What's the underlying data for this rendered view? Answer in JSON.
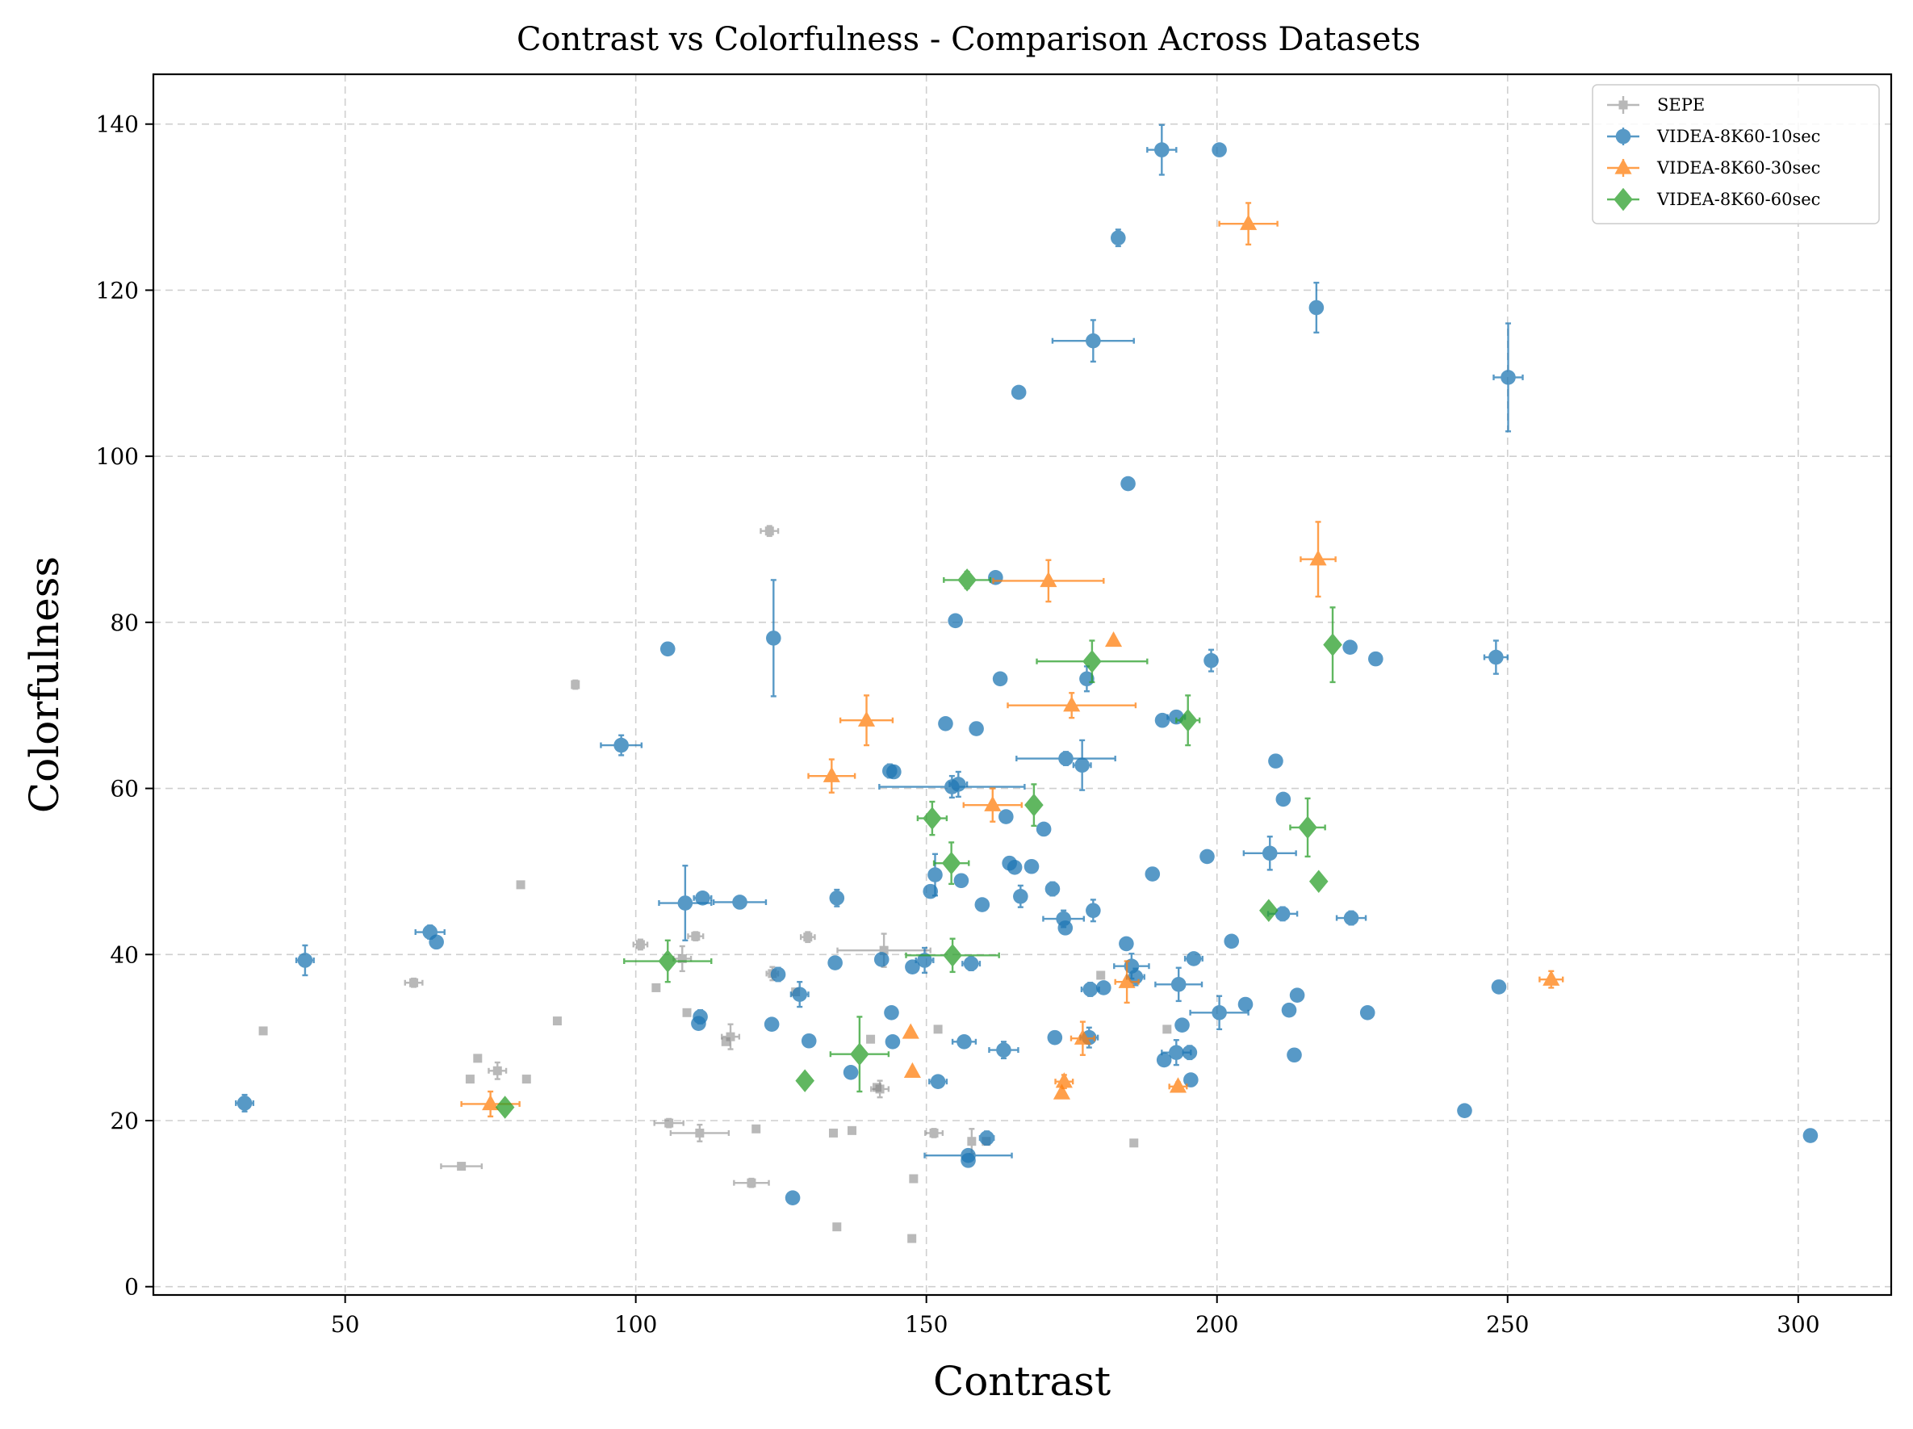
{
  "chart_data": {
    "type": "scatter",
    "title": "Contrast vs Colorfulness - Comparison Across Datasets",
    "xlabel": "Contrast",
    "ylabel": "Colorfulness",
    "xlim": [
      17,
      316
    ],
    "ylim": [
      -1,
      146
    ],
    "xticks": [
      50,
      100,
      150,
      200,
      250,
      300
    ],
    "yticks": [
      0,
      20,
      40,
      60,
      80,
      100,
      120,
      140
    ],
    "grid": true,
    "legend_position": "top-right",
    "series": [
      {
        "name": "SEPE",
        "color": "#7f7f7f",
        "marker": "square",
        "points": [
          [
            35.9,
            30.8,
            0,
            0
          ],
          [
            61.8,
            36.6,
            1.5,
            0.5
          ],
          [
            71.5,
            25.0,
            0,
            0
          ],
          [
            72.8,
            27.5,
            0,
            0
          ],
          [
            76.2,
            26.0,
            1.5,
            1.0
          ],
          [
            70.0,
            14.5,
            3.5,
            0
          ],
          [
            80.2,
            48.4,
            0,
            0
          ],
          [
            81.2,
            25.0,
            0,
            0
          ],
          [
            86.5,
            32.0,
            0,
            0
          ],
          [
            89.6,
            72.5,
            0,
            0.5
          ],
          [
            100.8,
            41.2,
            1.2,
            0.6
          ],
          [
            103.5,
            36.0,
            0,
            0
          ],
          [
            105.7,
            19.7,
            2.5,
            0.5
          ],
          [
            108.0,
            39.5,
            1.5,
            1.5
          ],
          [
            108.8,
            33.0,
            0,
            0
          ],
          [
            110.3,
            42.2,
            1.3,
            0.5
          ],
          [
            111.0,
            18.5,
            5.0,
            1.0
          ],
          [
            115.5,
            29.5,
            0,
            0
          ],
          [
            116.3,
            30.1,
            1.5,
            1.5
          ],
          [
            119.9,
            12.5,
            3.0,
            0.5
          ],
          [
            120.7,
            19.0,
            0,
            0
          ],
          [
            123.0,
            91.0,
            1.5,
            0.6
          ],
          [
            123.5,
            37.7,
            1.0,
            0.8
          ],
          [
            127.5,
            35.5,
            0,
            0
          ],
          [
            129.6,
            42.1,
            1.2,
            0.6
          ],
          [
            134.0,
            18.5,
            0,
            0
          ],
          [
            134.6,
            7.2,
            0,
            0
          ],
          [
            137.2,
            18.8,
            0,
            0
          ],
          [
            140.4,
            29.8,
            0,
            0
          ],
          [
            141.5,
            24.0,
            0,
            0
          ],
          [
            142.0,
            23.8,
            1.5,
            1.0
          ],
          [
            142.7,
            40.5,
            8.0,
            2.0
          ],
          [
            147.8,
            13.0,
            0,
            0
          ],
          [
            147.5,
            5.8,
            0,
            0
          ],
          [
            151.3,
            18.5,
            1.5,
            0.5
          ],
          [
            152.0,
            31.0,
            0,
            0
          ],
          [
            157.8,
            17.5,
            0,
            1.5
          ],
          [
            160.3,
            17.5,
            0,
            0
          ],
          [
            180.0,
            37.5,
            0,
            0
          ],
          [
            185.7,
            17.3,
            0,
            0
          ],
          [
            191.4,
            31.0,
            0,
            0
          ]
        ]
      },
      {
        "name": "VIDEA-8K60-10sec",
        "color": "#1f77b4",
        "marker": "circle",
        "points": [
          [
            32.7,
            22.1,
            1.5,
            1.0
          ],
          [
            43.1,
            39.3,
            1.5,
            1.8
          ],
          [
            64.6,
            42.7,
            2.5,
            0.8
          ],
          [
            65.7,
            41.5,
            0,
            0
          ],
          [
            97.5,
            65.2,
            3.5,
            1.2
          ],
          [
            105.5,
            76.8,
            0,
            0
          ],
          [
            108.5,
            46.2,
            4.5,
            4.5
          ],
          [
            111.5,
            46.8,
            1.5,
            0.5
          ],
          [
            111.1,
            32.5,
            1.0,
            0.8
          ],
          [
            110.8,
            31.7,
            0,
            0
          ],
          [
            117.9,
            46.3,
            4.5,
            0.5
          ],
          [
            123.7,
            78.1,
            1.0,
            7.0
          ],
          [
            123.4,
            31.6,
            0,
            0
          ],
          [
            124.5,
            37.6,
            1.0,
            0.8
          ],
          [
            127.0,
            10.7,
            0,
            0
          ],
          [
            128.2,
            35.2,
            1.5,
            1.5
          ],
          [
            129.8,
            29.6,
            0,
            0
          ],
          [
            134.3,
            39.0,
            1.0,
            0.7
          ],
          [
            134.6,
            46.8,
            1.0,
            1.0
          ],
          [
            137.0,
            25.8,
            0,
            0
          ],
          [
            142.3,
            39.4,
            0,
            0
          ],
          [
            143.7,
            62.1,
            1.0,
            0.8
          ],
          [
            144.4,
            62.0,
            1.0,
            0
          ],
          [
            144.0,
            33.0,
            0,
            0
          ],
          [
            144.2,
            29.5,
            0,
            0
          ],
          [
            147.6,
            38.5,
            0,
            0
          ],
          [
            149.7,
            39.3,
            1.5,
            1.5
          ],
          [
            150.7,
            47.6,
            0,
            0
          ],
          [
            151.5,
            49.6,
            1.0,
            2.5
          ],
          [
            152.0,
            24.7,
            1.5,
            0.5
          ],
          [
            153.3,
            67.8,
            0,
            0
          ],
          [
            154.4,
            60.2,
            12.5,
            1.3
          ],
          [
            155.0,
            80.2,
            0,
            0
          ],
          [
            155.5,
            60.5,
            1.5,
            1.5
          ],
          [
            156.0,
            48.9,
            0,
            0
          ],
          [
            156.5,
            29.5,
            2.0,
            0
          ],
          [
            157.2,
            15.8,
            7.5,
            0.5
          ],
          [
            157.2,
            15.2,
            0,
            0
          ],
          [
            157.7,
            38.9,
            1.5,
            0.8
          ],
          [
            158.6,
            67.2,
            0,
            0
          ],
          [
            159.6,
            46.0,
            0,
            0
          ],
          [
            160.4,
            17.9,
            1.2,
            0.8
          ],
          [
            161.9,
            85.4,
            1.0,
            0.5
          ],
          [
            162.7,
            73.2,
            1.0,
            0.5
          ],
          [
            163.3,
            28.5,
            2.5,
            1.0
          ],
          [
            163.7,
            56.6,
            0,
            0
          ],
          [
            164.3,
            51.0,
            0,
            0
          ],
          [
            165.2,
            50.5,
            0,
            0
          ],
          [
            165.9,
            107.7,
            0,
            0
          ],
          [
            166.2,
            47.0,
            0,
            1.3
          ],
          [
            168.1,
            50.6,
            0,
            0
          ],
          [
            170.2,
            55.1,
            0,
            0
          ],
          [
            171.7,
            47.9,
            1.0,
            0.8
          ],
          [
            172.1,
            30.0,
            0,
            0
          ],
          [
            173.6,
            44.3,
            3.5,
            1.0
          ],
          [
            173.9,
            43.2,
            0,
            0
          ],
          [
            174.0,
            63.6,
            8.5,
            0.8
          ],
          [
            176.8,
            62.8,
            1.5,
            3.0
          ],
          [
            177.6,
            73.2,
            0,
            1.5
          ],
          [
            178.0,
            30.0,
            1.5,
            1.2
          ],
          [
            178.2,
            35.8,
            1.5,
            0.8
          ],
          [
            178.7,
            45.3,
            0,
            1.3
          ],
          [
            178.7,
            113.9,
            7.0,
            2.5
          ],
          [
            180.5,
            36.0,
            0,
            0
          ],
          [
            184.4,
            41.3,
            0,
            0
          ],
          [
            184.7,
            96.7,
            0,
            0
          ],
          [
            183.0,
            126.3,
            1.0,
            1.0
          ],
          [
            185.3,
            38.6,
            3.0,
            1.5
          ],
          [
            186.0,
            37.3,
            1.5,
            1.0
          ],
          [
            188.9,
            49.7,
            0,
            0
          ],
          [
            190.6,
            68.2,
            0,
            0
          ],
          [
            190.5,
            136.9,
            2.5,
            3.0
          ],
          [
            190.9,
            27.3,
            0,
            0
          ],
          [
            193.0,
            68.6,
            1.5,
            0.5
          ],
          [
            193.0,
            28.2,
            2.5,
            1.5
          ],
          [
            193.4,
            36.4,
            4.0,
            2.0
          ],
          [
            194.0,
            31.5,
            0,
            0
          ],
          [
            195.3,
            28.2,
            1.0,
            0.8
          ],
          [
            195.5,
            24.9,
            0,
            0
          ],
          [
            196.0,
            39.5,
            1.5,
            0
          ],
          [
            198.3,
            51.8,
            0,
            0
          ],
          [
            199.0,
            75.4,
            1.0,
            1.3
          ],
          [
            200.4,
            33.0,
            5.0,
            2.0
          ],
          [
            200.4,
            136.9,
            0,
            0
          ],
          [
            202.5,
            41.6,
            0,
            0
          ],
          [
            204.9,
            34.0,
            0,
            0
          ],
          [
            209.1,
            52.2,
            4.5,
            2.0
          ],
          [
            210.1,
            63.3,
            0,
            0
          ],
          [
            211.3,
            44.9,
            2.5,
            0.8
          ],
          [
            211.4,
            58.7,
            0,
            0
          ],
          [
            212.4,
            33.3,
            0,
            0
          ],
          [
            213.3,
            27.9,
            0,
            0
          ],
          [
            213.8,
            35.1,
            0,
            0
          ],
          [
            217.1,
            117.9,
            1.0,
            3.0
          ],
          [
            222.9,
            77.0,
            0,
            0
          ],
          [
            223.1,
            44.4,
            2.5,
            0.8
          ],
          [
            225.9,
            33.0,
            0,
            0
          ],
          [
            227.3,
            75.6,
            0,
            0
          ],
          [
            242.6,
            21.2,
            0,
            0
          ],
          [
            248.0,
            75.8,
            2.0,
            2.0
          ],
          [
            248.5,
            36.1,
            0,
            0
          ],
          [
            250.1,
            109.5,
            2.5,
            6.5
          ],
          [
            302.1,
            18.2,
            0,
            0
          ]
        ]
      },
      {
        "name": "VIDEA-8K60-30sec",
        "color": "#ff7f0e",
        "marker": "triangle",
        "points": [
          [
            75.0,
            22.0,
            5.0,
            1.5
          ],
          [
            133.7,
            61.5,
            4.0,
            2.0
          ],
          [
            139.7,
            68.2,
            4.5,
            3.0
          ],
          [
            147.3,
            30.6,
            0,
            0
          ],
          [
            147.6,
            25.9,
            0,
            0
          ],
          [
            161.4,
            58.0,
            5.0,
            2.0
          ],
          [
            171.0,
            85.0,
            9.5,
            2.5
          ],
          [
            173.3,
            23.3,
            0,
            0
          ],
          [
            173.7,
            24.7,
            1.5,
            0.8
          ],
          [
            175.0,
            70.0,
            11.0,
            1.5
          ],
          [
            176.9,
            29.9,
            2.0,
            2.0
          ],
          [
            182.2,
            77.8,
            0,
            0
          ],
          [
            184.5,
            36.7,
            2.0,
            2.5
          ],
          [
            193.3,
            24.1,
            1.5,
            0.5
          ],
          [
            205.4,
            128.0,
            5.0,
            2.5
          ],
          [
            217.4,
            87.6,
            3.0,
            4.5
          ],
          [
            257.5,
            37.0,
            2.0,
            1.0
          ]
        ]
      },
      {
        "name": "VIDEA-8K60-60sec",
        "color": "#2ca02c",
        "marker": "diamond",
        "points": [
          [
            77.5,
            21.6,
            1.0,
            0.5
          ],
          [
            105.5,
            39.2,
            7.5,
            2.5
          ],
          [
            129.1,
            24.8,
            1.0,
            0.5
          ],
          [
            138.5,
            28.0,
            5.0,
            4.5
          ],
          [
            151.0,
            56.4,
            2.5,
            2.0
          ],
          [
            154.3,
            51.0,
            3.0,
            2.5
          ],
          [
            154.5,
            39.9,
            8.0,
            2.0
          ],
          [
            157.0,
            85.1,
            4.0,
            1.0
          ],
          [
            168.5,
            58.0,
            1.0,
            2.5
          ],
          [
            178.5,
            75.3,
            9.5,
            2.5
          ],
          [
            195.0,
            68.2,
            2.0,
            3.0
          ],
          [
            208.9,
            45.3,
            1.0,
            0.5
          ],
          [
            215.6,
            55.3,
            3.0,
            3.5
          ],
          [
            217.5,
            48.8,
            0,
            0
          ],
          [
            219.9,
            77.3,
            0,
            4.5
          ]
        ]
      }
    ]
  }
}
